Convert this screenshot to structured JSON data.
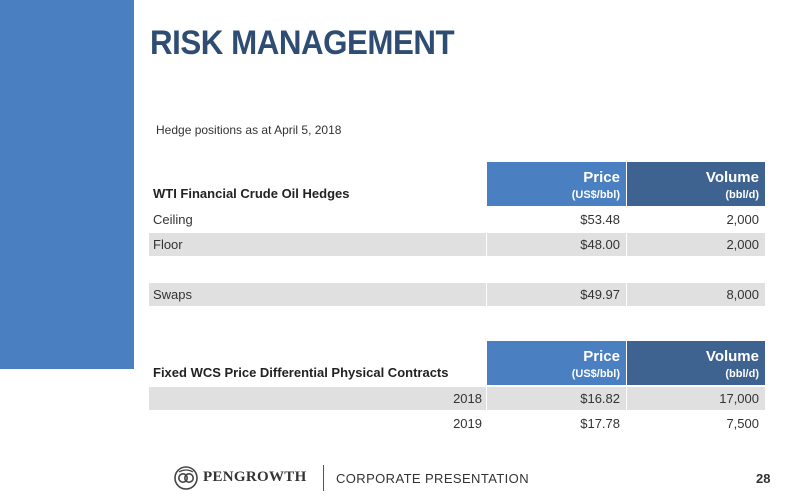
{
  "title": "RISK MANAGEMENT",
  "subtitle": "Hedge positions as at April 5, 2018",
  "colors": {
    "accent_blue": "#4a7fc1",
    "dark_blue": "#3f6391",
    "title_color": "#2f4d73",
    "row_shade": "#e0e0e0"
  },
  "table1": {
    "label": "WTI Financial Crude Oil Hedges",
    "price_header": "Price",
    "price_unit": "(US$/bbl)",
    "volume_header": "Volume",
    "volume_unit": "(bbl/d)",
    "rows": [
      {
        "name": "Ceiling",
        "price": "$53.48",
        "volume": "2,000"
      },
      {
        "name": "Floor",
        "price": "$48.00",
        "volume": "2,000"
      },
      {
        "name": "Swaps",
        "price": "$49.97",
        "volume": "8,000"
      }
    ]
  },
  "table2": {
    "label": "Fixed WCS Price Differential Physical Contracts",
    "price_header": "Price",
    "price_unit": "(US$/bbl)",
    "volume_header": "Volume",
    "volume_unit": "(bbl/d)",
    "rows": [
      {
        "name": "2018",
        "price": "$16.82",
        "volume": "17,000"
      },
      {
        "name": "2019",
        "price": "$17.78",
        "volume": "7,500"
      }
    ]
  },
  "footer": {
    "logo_text": "PENGROWTH",
    "logo_icon": "pengrowth-logo-icon",
    "section": "CORPORATE PRESENTATION",
    "page_number": "28"
  }
}
